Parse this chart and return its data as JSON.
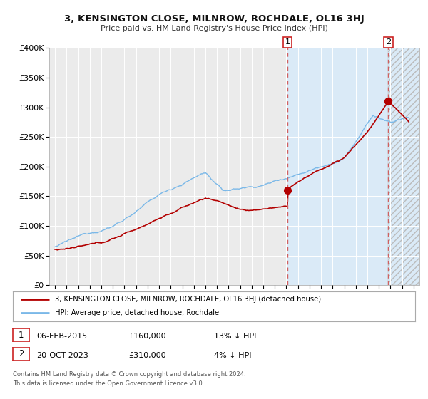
{
  "title": "3, KENSINGTON CLOSE, MILNROW, ROCHDALE, OL16 3HJ",
  "subtitle": "Price paid vs. HM Land Registry's House Price Index (HPI)",
  "ylim": [
    0,
    400000
  ],
  "xlim": [
    1994.5,
    2026.5
  ],
  "background_color": "#ffffff",
  "plot_bg_color": "#ebebeb",
  "shaded_region_color": "#daeaf7",
  "grid_color": "#ffffff",
  "hpi_line_color": "#7ab8e8",
  "price_line_color": "#b30000",
  "vline_color": "#d06060",
  "ann1_x": 2015.1,
  "ann1_y": 160000,
  "ann2_x": 2023.8,
  "ann2_y": 310000,
  "legend_line1": "3, KENSINGTON CLOSE, MILNROW, ROCHDALE, OL16 3HJ (detached house)",
  "legend_line2": "HPI: Average price, detached house, Rochdale",
  "ann1_date": "06-FEB-2015",
  "ann1_price": "£160,000",
  "ann1_pct": "13% ↓ HPI",
  "ann2_date": "20-OCT-2023",
  "ann2_price": "£310,000",
  "ann2_pct": "4% ↓ HPI",
  "footnote1": "Contains HM Land Registry data © Crown copyright and database right 2024.",
  "footnote2": "This data is licensed under the Open Government Licence v3.0.",
  "yticks": [
    0,
    50000,
    100000,
    150000,
    200000,
    250000,
    300000,
    350000,
    400000
  ],
  "ytick_labels": [
    "£0",
    "£50K",
    "£100K",
    "£150K",
    "£200K",
    "£250K",
    "£300K",
    "£350K",
    "£400K"
  ]
}
